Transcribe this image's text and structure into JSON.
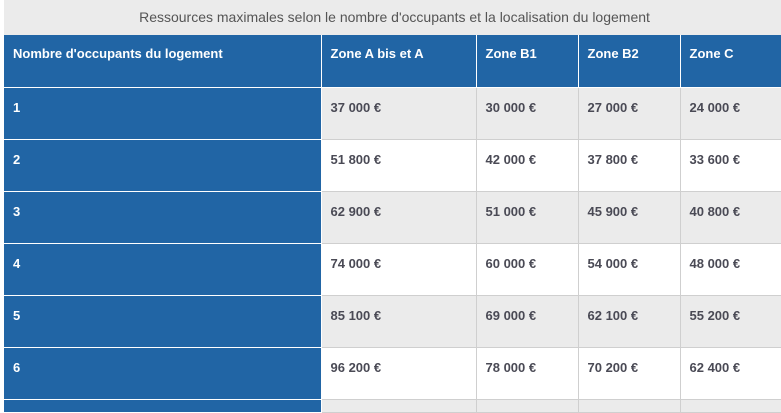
{
  "caption": "Ressources maximales selon le nombre d'occupants et la localisation du logement",
  "headers": [
    "Nombre d'occupants du logement",
    "Zone A bis et A",
    "Zone B1",
    "Zone B2",
    "Zone C"
  ],
  "rows": [
    [
      "1",
      "37 000 €",
      "30 000 €",
      "27 000 €",
      "24 000 €"
    ],
    [
      "2",
      "51 800 €",
      "42 000 €",
      "37 800 €",
      "33 600 €"
    ],
    [
      "3",
      "62 900 €",
      "51 000 €",
      "45 900 €",
      "40 800 €"
    ],
    [
      "4",
      "74 000 €",
      "60 000 €",
      "54 000 €",
      "48 000 €"
    ],
    [
      "5",
      "85 100 €",
      "69 000 €",
      "62 100 €",
      "55 200 €"
    ],
    [
      "6",
      "96 200 €",
      "78 000 €",
      "70 200 €",
      "62 400 €"
    ]
  ],
  "colors": {
    "header": "#2165a5",
    "stripe": "#ebebeb",
    "text": "#4a4a55"
  }
}
